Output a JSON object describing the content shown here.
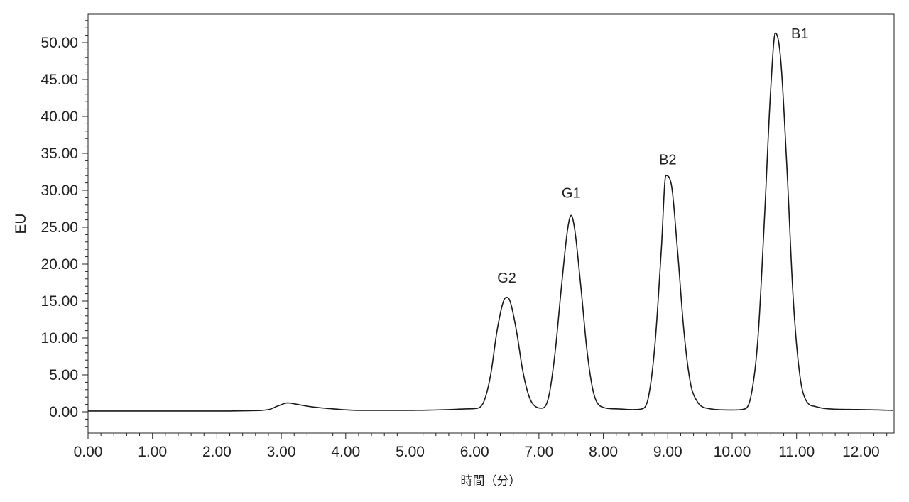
{
  "chart_data": {
    "type": "line",
    "xlabel": "時間（分）",
    "ylabel": "EU",
    "xlim": [
      0,
      12.5
    ],
    "ylim": [
      -3,
      54
    ],
    "x_ticks": [
      "0.00",
      "1.00",
      "2.00",
      "3.00",
      "4.00",
      "5.00",
      "6.00",
      "7.00",
      "8.00",
      "9.00",
      "10.00",
      "11.00",
      "12.00"
    ],
    "y_ticks": [
      "0.00",
      "5.00",
      "10.00",
      "15.00",
      "20.00",
      "25.00",
      "30.00",
      "35.00",
      "40.00",
      "45.00",
      "50.00"
    ],
    "grid": false,
    "series": [
      {
        "color": "#1a1a1a",
        "x": [
          0.0,
          1.0,
          2.0,
          2.5,
          2.8,
          2.95,
          3.1,
          3.25,
          3.45,
          3.8,
          4.2,
          5.0,
          5.6,
          5.9,
          6.05,
          6.15,
          6.25,
          6.35,
          6.45,
          6.5,
          6.55,
          6.65,
          6.75,
          6.85,
          6.95,
          7.05,
          7.15,
          7.25,
          7.35,
          7.45,
          7.5,
          7.55,
          7.65,
          7.75,
          7.85,
          8.0,
          8.2,
          8.45,
          8.6,
          8.7,
          8.8,
          8.9,
          8.97,
          9.05,
          9.15,
          9.25,
          9.35,
          9.45,
          9.6,
          10.0,
          10.2,
          10.3,
          10.4,
          10.5,
          10.6,
          10.67,
          10.75,
          10.85,
          10.95,
          11.05,
          11.15,
          11.3,
          11.5,
          12.0,
          12.5
        ],
        "y": [
          0.1,
          0.1,
          0.1,
          0.15,
          0.3,
          0.8,
          1.2,
          1.0,
          0.7,
          0.4,
          0.2,
          0.2,
          0.3,
          0.4,
          0.5,
          1.5,
          5.0,
          11.0,
          15.0,
          15.5,
          15.0,
          11.0,
          5.5,
          2.0,
          0.7,
          0.5,
          2.0,
          8.0,
          17.0,
          25.0,
          26.6,
          25.0,
          17.0,
          8.0,
          2.5,
          0.6,
          0.4,
          0.3,
          0.4,
          2.0,
          9.0,
          22.0,
          32.0,
          31.0,
          22.0,
          11.0,
          4.0,
          1.5,
          0.5,
          0.25,
          0.4,
          2.5,
          10.0,
          26.0,
          44.0,
          51.3,
          48.0,
          33.0,
          15.0,
          5.0,
          1.5,
          0.7,
          0.4,
          0.3,
          0.2
        ]
      }
    ],
    "annotations": [
      {
        "text": "G2",
        "x": 6.5,
        "y": 17.5
      },
      {
        "text": "G1",
        "x": 7.5,
        "y": 29.0
      },
      {
        "text": "B2",
        "x": 9.0,
        "y": 33.5
      },
      {
        "text": "B1",
        "x": 11.05,
        "y": 50.6
      }
    ]
  }
}
